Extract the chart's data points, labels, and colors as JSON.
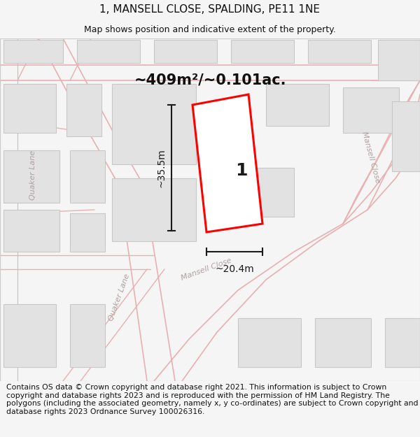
{
  "title": "1, MANSELL CLOSE, SPALDING, PE11 1NE",
  "subtitle": "Map shows position and indicative extent of the property.",
  "area_label": "~409m²/~0.101ac.",
  "width_label": "~20.4m",
  "height_label": "~35.5m",
  "plot_number": "1",
  "footer": "Contains OS data © Crown copyright and database right 2021. This information is subject to Crown copyright and database rights 2023 and is reproduced with the permission of HM Land Registry. The polygons (including the associated geometry, namely x, y co-ordinates) are subject to Crown copyright and database rights 2023 Ordnance Survey 100026316.",
  "bg_color": "#f5f5f5",
  "map_bg": "#f8f8f8",
  "road_line_color": "#e8b0b0",
  "building_color": "#e2e2e2",
  "building_edge": "#c8c8c8",
  "plot_edge": "#ff0000",
  "plot_fill": "#ffffff",
  "dim_color": "#1a1a1a",
  "title_fontsize": 11,
  "subtitle_fontsize": 9,
  "footer_fontsize": 7.8,
  "road_label_color": "#b0a0a0",
  "road_label_size": 8
}
